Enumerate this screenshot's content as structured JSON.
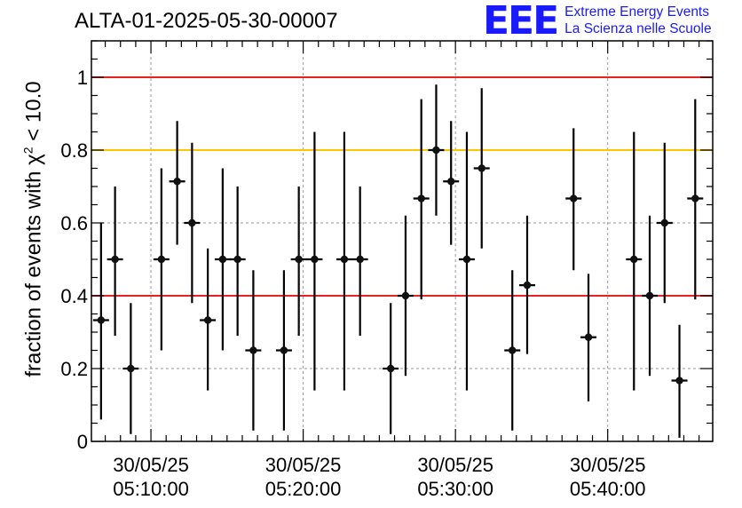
{
  "chart_data": {
    "type": "scatter",
    "title": "ALTA-01-2025-05-30-00007",
    "ylabel_prefix": "fraction of events with χ",
    "ylabel_sup": "2",
    "ylabel_suffix": " < 10.0",
    "xlim": [
      0,
      710
    ],
    "ylim": [
      0,
      1.1
    ],
    "y_ticks": [
      "0",
      "0.2",
      "0.4",
      "0.6",
      "0.8",
      "1"
    ],
    "y_tick_values": [
      0,
      0.2,
      0.4,
      0.6,
      0.8,
      1.0
    ],
    "x_tick_values": [
      68,
      242,
      416,
      590
    ],
    "x_tick_labels": [
      [
        "30/05/25",
        "05:10:00"
      ],
      [
        "30/05/25",
        "05:20:00"
      ],
      [
        "30/05/25",
        "05:30:00"
      ],
      [
        "30/05/25",
        "05:40:00"
      ]
    ],
    "grid": true,
    "reference_lines": [
      {
        "y": 1.0,
        "color": "#e8231c"
      },
      {
        "y": 0.8,
        "color": "#ffc400"
      },
      {
        "y": 0.4,
        "color": "#e8231c"
      }
    ],
    "points": [
      {
        "x": 11,
        "y": 0.333,
        "lo": 0.06,
        "hi": 0.6
      },
      {
        "x": 27,
        "y": 0.5,
        "lo": 0.29,
        "hi": 0.7
      },
      {
        "x": 45,
        "y": 0.2,
        "lo": 0.02,
        "hi": 0.38
      },
      {
        "x": 80,
        "y": 0.5,
        "lo": 0.25,
        "hi": 0.75
      },
      {
        "x": 98,
        "y": 0.714,
        "lo": 0.54,
        "hi": 0.88
      },
      {
        "x": 115,
        "y": 0.6,
        "lo": 0.38,
        "hi": 0.82
      },
      {
        "x": 133,
        "y": 0.333,
        "lo": 0.14,
        "hi": 0.53
      },
      {
        "x": 150,
        "y": 0.5,
        "lo": 0.25,
        "hi": 0.75
      },
      {
        "x": 167,
        "y": 0.5,
        "lo": 0.29,
        "hi": 0.7
      },
      {
        "x": 185,
        "y": 0.25,
        "lo": 0.03,
        "hi": 0.47
      },
      {
        "x": 220,
        "y": 0.25,
        "lo": 0.03,
        "hi": 0.47
      },
      {
        "x": 237,
        "y": 0.5,
        "lo": 0.29,
        "hi": 0.7
      },
      {
        "x": 255,
        "y": 0.5,
        "lo": 0.14,
        "hi": 0.85
      },
      {
        "x": 289,
        "y": 0.5,
        "lo": 0.14,
        "hi": 0.85
      },
      {
        "x": 307,
        "y": 0.5,
        "lo": 0.29,
        "hi": 0.7
      },
      {
        "x": 342,
        "y": 0.2,
        "lo": 0.02,
        "hi": 0.38
      },
      {
        "x": 359,
        "y": 0.4,
        "lo": 0.18,
        "hi": 0.62
      },
      {
        "x": 377,
        "y": 0.667,
        "lo": 0.39,
        "hi": 0.94
      },
      {
        "x": 394,
        "y": 0.8,
        "lo": 0.62,
        "hi": 0.98
      },
      {
        "x": 411,
        "y": 0.714,
        "lo": 0.54,
        "hi": 0.88
      },
      {
        "x": 429,
        "y": 0.5,
        "lo": 0.14,
        "hi": 0.85
      },
      {
        "x": 446,
        "y": 0.75,
        "lo": 0.53,
        "hi": 0.97
      },
      {
        "x": 481,
        "y": 0.25,
        "lo": 0.03,
        "hi": 0.47
      },
      {
        "x": 498,
        "y": 0.429,
        "lo": 0.24,
        "hi": 0.62
      },
      {
        "x": 551,
        "y": 0.667,
        "lo": 0.47,
        "hi": 0.86
      },
      {
        "x": 568,
        "y": 0.286,
        "lo": 0.11,
        "hi": 0.46
      },
      {
        "x": 620,
        "y": 0.5,
        "lo": 0.14,
        "hi": 0.85
      },
      {
        "x": 638,
        "y": 0.4,
        "lo": 0.18,
        "hi": 0.62
      },
      {
        "x": 655,
        "y": 0.6,
        "lo": 0.38,
        "hi": 0.82
      },
      {
        "x": 672,
        "y": 0.167,
        "lo": 0.01,
        "hi": 0.32
      },
      {
        "x": 690,
        "y": 0.667,
        "lo": 0.39,
        "hi": 0.94
      }
    ]
  },
  "logo": {
    "mark": "EEE",
    "line1": "Extreme Energy Events",
    "line2": "La Scienza nelle Scuole",
    "color": "#1a1aff"
  }
}
